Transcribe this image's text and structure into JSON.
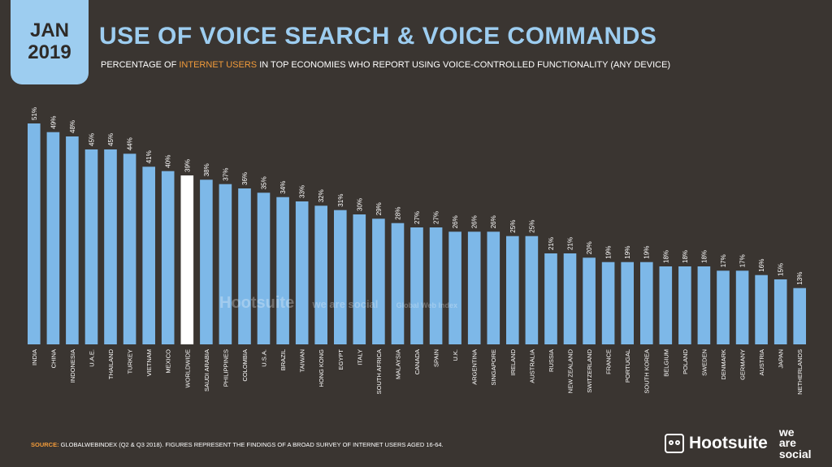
{
  "header": {
    "date_month": "JAN",
    "date_year": "2019",
    "title": "USE OF VOICE SEARCH & VOICE COMMANDS",
    "subtitle_prefix": "PERCENTAGE OF ",
    "subtitle_highlight": "INTERNET USERS",
    "subtitle_suffix": " IN TOP ECONOMIES WHO REPORT USING VOICE-CONTROLLED FUNCTIONALITY (ANY DEVICE)"
  },
  "watermark": {
    "hootsuite": "Hootsuite",
    "we_are_social": "we are social",
    "gwi": "Global Web Index"
  },
  "footer": {
    "source_label": "SOURCE:",
    "source_text": " GLOBALWEBINDEX (Q2 & Q3 2018). FIGURES REPRESENT THE FINDINGS OF A BROAD SURVEY OF INTERNET USERS AGED 16-64.",
    "hootsuite": "Hootsuite",
    "we": "we",
    "are": "are",
    "social": "social"
  },
  "colors": {
    "background": "#3a3531",
    "bar": "#7db8e8",
    "highlight_bar": "#ffffff",
    "accent": "#9dcdf0",
    "orange": "#f29b3a"
  },
  "chart_data": {
    "type": "bar",
    "categories": [
      "INDIA",
      "CHINA",
      "INDONESIA",
      "U.A.E.",
      "THAILAND",
      "TURKEY",
      "VIETNAM",
      "MEXICO",
      "WORLDWIDE",
      "SAUDI ARABIA",
      "PHILIPPINES",
      "COLOMBIA",
      "U.S.A.",
      "BRAZIL",
      "TAIWAN",
      "HONG KONG",
      "EGYPT",
      "ITALY",
      "SOUTH AFRICA",
      "MALAYSIA",
      "CANADA",
      "SPAIN",
      "U.K.",
      "ARGENTINA",
      "SINGAPORE",
      "IRELAND",
      "AUSTRALIA",
      "RUSSIA",
      "NEW ZEALAND",
      "SWITZERLAND",
      "FRANCE",
      "PORTUGAL",
      "SOUTH KOREA",
      "BELGIUM",
      "POLAND",
      "SWEDEN",
      "DENMARK",
      "GERMANY",
      "AUSTRIA",
      "JAPAN",
      "NETHERLANDS"
    ],
    "values": [
      51,
      49,
      48,
      45,
      45,
      44,
      41,
      40,
      39,
      38,
      37,
      36,
      35,
      34,
      33,
      32,
      31,
      30,
      29,
      28,
      27,
      27,
      26,
      26,
      26,
      25,
      25,
      21,
      21,
      20,
      19,
      19,
      19,
      18,
      18,
      18,
      17,
      17,
      16,
      15,
      13
    ],
    "value_labels": [
      "51%",
      "49%",
      "48%",
      "45%",
      "45%",
      "44%",
      "41%",
      "40%",
      "39%",
      "38%",
      "37%",
      "36%",
      "35%",
      "34%",
      "33%",
      "32%",
      "31%",
      "30%",
      "29%",
      "28%",
      "27%",
      "27%",
      "26%",
      "26%",
      "26%",
      "25%",
      "25%",
      "21%",
      "21%",
      "20%",
      "19%",
      "19%",
      "19%",
      "18%",
      "18%",
      "18%",
      "17%",
      "17%",
      "16%",
      "15%",
      "13%"
    ],
    "highlight_category": "WORLDWIDE",
    "ylim": [
      0,
      51
    ],
    "grid": false
  }
}
